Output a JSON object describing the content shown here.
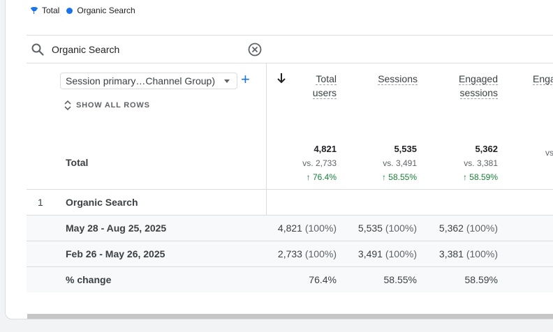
{
  "legend": {
    "total": "Total",
    "organic": "Organic Search",
    "total_color": "#1a73e8",
    "organic_color": "#1a73e8"
  },
  "search": {
    "value": "Organic Search"
  },
  "dimension": {
    "label": "Session primary…Channel Group)",
    "show_all": "SHOW ALL ROWS"
  },
  "columns": [
    {
      "line1": "Total",
      "line2": "users"
    },
    {
      "line1": "Sessions",
      "line2": ""
    },
    {
      "line1": "Engaged",
      "line2": "sessions"
    },
    {
      "line1": "Enga",
      "line2": ""
    }
  ],
  "totals": {
    "label": "Total",
    "cols": [
      {
        "value": "4,821",
        "vs": "vs. 2,733",
        "change": "↑ 76.4%"
      },
      {
        "value": "5,535",
        "vs": "vs. 3,491",
        "change": "↑ 58.55%"
      },
      {
        "value": "5,362",
        "vs": "vs. 3,381",
        "change": "↑ 58.59%"
      },
      {
        "value": "",
        "vs": "vs",
        "change": ""
      }
    ]
  },
  "rows": [
    {
      "num": "1",
      "label": "Organic Search",
      "cells": []
    },
    {
      "num": "",
      "label": "May 28 - Aug 25, 2025",
      "cells": [
        {
          "v": "4,821",
          "p": "(100%)"
        },
        {
          "v": "5,535",
          "p": "(100%)"
        },
        {
          "v": "5,362",
          "p": "(100%)"
        }
      ]
    },
    {
      "num": "",
      "label": "Feb 26 - May 26, 2025",
      "cells": [
        {
          "v": "2,733",
          "p": "(100%)"
        },
        {
          "v": "3,491",
          "p": "(100%)"
        },
        {
          "v": "3,381",
          "p": "(100%)"
        }
      ]
    },
    {
      "num": "",
      "label": "% change",
      "cells": [
        {
          "v": "76.4%",
          "p": ""
        },
        {
          "v": "58.55%",
          "p": ""
        },
        {
          "v": "58.59%",
          "p": ""
        }
      ]
    }
  ]
}
